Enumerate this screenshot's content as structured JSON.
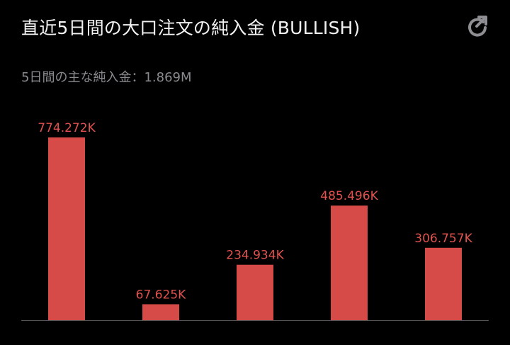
{
  "header": {
    "title": "直近5日間の大口注文の純入金 (BULLISH)",
    "share_icon": "share-icon"
  },
  "summary": {
    "text": "5日間の主な純入金：1.869M"
  },
  "colors": {
    "bar": "#d64a47",
    "label": "#e0524e",
    "axis": "#555555",
    "title": "#f2f2f2",
    "subtitle": "#8a8a8f",
    "icon": "#8e8e93"
  },
  "chart_data": {
    "type": "bar",
    "categories": [
      "",
      "",
      "",
      "",
      ""
    ],
    "values": [
      774272,
      67625,
      234934,
      485496,
      306757
    ],
    "labels": [
      "774.272K",
      "67.625K",
      "234.934K",
      "485.496K",
      "306.757K"
    ],
    "title": "直近5日間の大口注文の純入金 (BULLISH)",
    "xlabel": "",
    "ylabel": "",
    "ylim": [
      0,
      774272
    ],
    "grid": false,
    "legend": "none"
  }
}
